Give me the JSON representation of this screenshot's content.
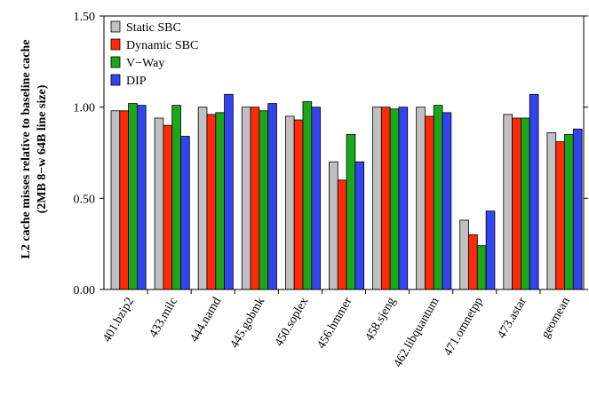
{
  "chart_data": {
    "type": "bar",
    "ylabel_line1": "L2 cache misses relative to baseline cache",
    "ylabel_line2": "(2MB 8−w 64B line size)",
    "ylim": [
      0,
      1.5
    ],
    "yticks": [
      {
        "value": 0,
        "label": "0.00"
      },
      {
        "value": 0.5,
        "label": "0.50"
      },
      {
        "value": 1.0,
        "label": "1.00"
      },
      {
        "value": 1.5,
        "label": "1.50"
      }
    ],
    "categories": [
      "401.bzip2",
      "433.milc",
      "444.namd",
      "445.gobmk",
      "450.soplex",
      "456.hmmer",
      "458.sjeng",
      "462.libquantum",
      "471.omnetpp",
      "473.astar",
      "geomean"
    ],
    "series": [
      {
        "name": "Static SBC",
        "color": "#c0c0c0",
        "values": [
          0.98,
          0.94,
          1.0,
          1.0,
          0.95,
          0.7,
          1.0,
          1.0,
          0.38,
          0.96,
          0.86
        ]
      },
      {
        "name": "Dynamic SBC",
        "color": "#ff2a0a",
        "values": [
          0.98,
          0.9,
          0.96,
          1.0,
          0.93,
          0.6,
          1.0,
          0.95,
          0.3,
          0.94,
          0.81
        ]
      },
      {
        "name": "V−Way",
        "color": "#1aa81a",
        "values": [
          1.02,
          1.01,
          0.97,
          0.98,
          1.03,
          0.85,
          0.99,
          1.01,
          0.24,
          0.94,
          0.85
        ]
      },
      {
        "name": "DIP",
        "color": "#3344ee",
        "values": [
          1.01,
          0.84,
          1.07,
          1.02,
          1.0,
          0.7,
          1.0,
          0.97,
          0.43,
          1.07,
          0.88
        ]
      }
    ],
    "grid": false,
    "legend_position": "top-left"
  }
}
